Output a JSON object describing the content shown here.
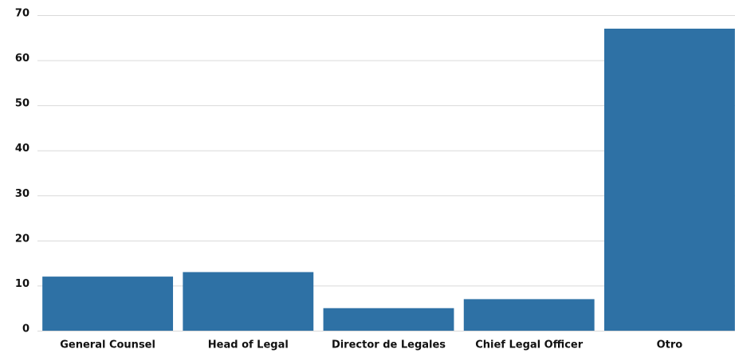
{
  "chart_data": {
    "type": "bar",
    "categories": [
      "General Counsel",
      "Head of Legal",
      "Director de Legales",
      "Chief Legal Officer",
      "Otro"
    ],
    "values": [
      12,
      13,
      5,
      7,
      67
    ],
    "color": "#2e71a5",
    "ylim": [
      0,
      70
    ],
    "yticks": [
      0,
      10,
      20,
      30,
      40,
      50,
      60,
      70
    ],
    "grid": true
  }
}
